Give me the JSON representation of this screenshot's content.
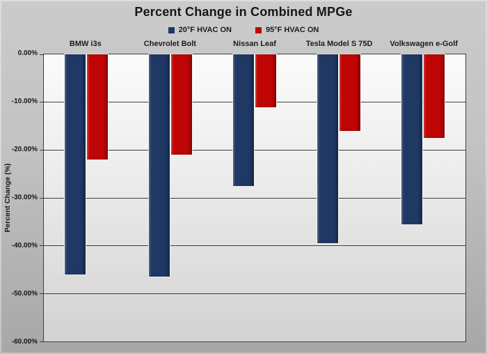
{
  "title": "Percent Change in Combined MPGe",
  "chart_data": {
    "type": "bar",
    "title": "Percent Change in Combined MPGe",
    "categories": [
      "BMW i3s",
      "Chevrolet Bolt",
      "Nissan Leaf",
      "Tesla Model S 75D",
      "Volkswagen e-Golf"
    ],
    "series": [
      {
        "name": "20°F HVAC ON",
        "color": "#1F3864",
        "values": [
          -46.0,
          -46.5,
          -27.5,
          -39.5,
          -35.5
        ]
      },
      {
        "name": "95°F HVAC ON",
        "color": "#C00505",
        "values": [
          -22.0,
          -21.0,
          -11.0,
          -16.0,
          -17.5
        ]
      }
    ],
    "xlabel": "",
    "ylabel": "Percent Change (%)",
    "ylim": [
      -60,
      0
    ],
    "ytick_labels": [
      "0.00%",
      "-10.00%",
      "-20.00%",
      "-30.00%",
      "-40.00%",
      "-50.00%",
      "-60.00%"
    ],
    "grid": true,
    "legend_position": "top",
    "group_centers_pct": [
      10,
      30,
      50,
      70,
      90
    ]
  }
}
